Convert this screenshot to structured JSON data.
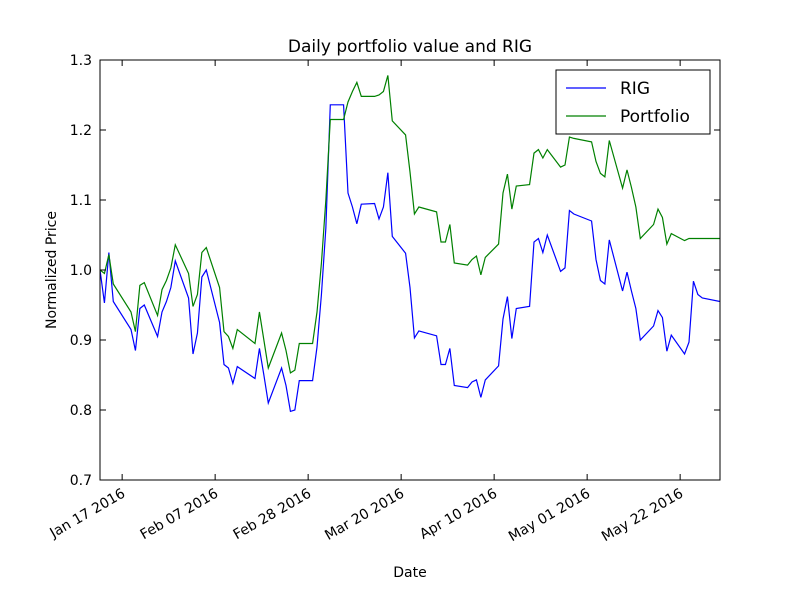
{
  "chart_data": {
    "type": "line",
    "title": "Daily portfolio value and RIG",
    "xlabel": "Date",
    "ylabel": "Normalized Price",
    "xlim": [
      "2016-01-12",
      "2016-05-31"
    ],
    "ylim": [
      0.7,
      1.3
    ],
    "yticks": [
      0.7,
      0.8,
      0.9,
      1.0,
      1.1,
      1.2,
      1.3
    ],
    "ytick_labels": [
      "0.7",
      "0.8",
      "0.9",
      "1.0",
      "1.1",
      "1.2",
      "1.3"
    ],
    "xticks": [
      "2016-01-17",
      "2016-02-07",
      "2016-02-28",
      "2016-03-20",
      "2016-04-10",
      "2016-05-01",
      "2016-05-22"
    ],
    "xtick_labels": [
      "Jan 17 2016",
      "Feb 07 2016",
      "Feb 28 2016",
      "Mar 20 2016",
      "Apr 10 2016",
      "May 01 2016",
      "May 22 2016"
    ],
    "grid": false,
    "legend_position": "top-right",
    "series": [
      {
        "name": "RIG",
        "color": "#0000ff",
        "points": [
          [
            "2016-01-12",
            1.0
          ],
          [
            "2016-01-13",
            0.953
          ],
          [
            "2016-01-14",
            1.025
          ],
          [
            "2016-01-15",
            0.955
          ],
          [
            "2016-01-19",
            0.915
          ],
          [
            "2016-01-20",
            0.885
          ],
          [
            "2016-01-21",
            0.945
          ],
          [
            "2016-01-22",
            0.95
          ],
          [
            "2016-01-25",
            0.905
          ],
          [
            "2016-01-26",
            0.94
          ],
          [
            "2016-01-27",
            0.955
          ],
          [
            "2016-01-28",
            0.975
          ],
          [
            "2016-01-29",
            1.013
          ],
          [
            "2016-02-01",
            0.96
          ],
          [
            "2016-02-02",
            0.88
          ],
          [
            "2016-02-03",
            0.91
          ],
          [
            "2016-02-04",
            0.99
          ],
          [
            "2016-02-05",
            1.0
          ],
          [
            "2016-02-08",
            0.925
          ],
          [
            "2016-02-09",
            0.865
          ],
          [
            "2016-02-10",
            0.86
          ],
          [
            "2016-02-11",
            0.838
          ],
          [
            "2016-02-12",
            0.862
          ],
          [
            "2016-02-16",
            0.845
          ],
          [
            "2016-02-17",
            0.888
          ],
          [
            "2016-02-18",
            0.85
          ],
          [
            "2016-02-19",
            0.81
          ],
          [
            "2016-02-22",
            0.86
          ],
          [
            "2016-02-23",
            0.835
          ],
          [
            "2016-02-24",
            0.798
          ],
          [
            "2016-02-25",
            0.8
          ],
          [
            "2016-02-26",
            0.842
          ],
          [
            "2016-02-29",
            0.842
          ],
          [
            "2016-03-01",
            0.89
          ],
          [
            "2016-03-02",
            0.965
          ],
          [
            "2016-03-03",
            1.06
          ],
          [
            "2016-03-04",
            1.236
          ],
          [
            "2016-03-07",
            1.236
          ],
          [
            "2016-03-08",
            1.11
          ],
          [
            "2016-03-09",
            1.09
          ],
          [
            "2016-03-10",
            1.066
          ],
          [
            "2016-03-11",
            1.094
          ],
          [
            "2016-03-14",
            1.095
          ],
          [
            "2016-03-15",
            1.073
          ],
          [
            "2016-03-16",
            1.09
          ],
          [
            "2016-03-17",
            1.139
          ],
          [
            "2016-03-18",
            1.048
          ],
          [
            "2016-03-21",
            1.024
          ],
          [
            "2016-03-22",
            0.975
          ],
          [
            "2016-03-23",
            0.903
          ],
          [
            "2016-03-24",
            0.913
          ],
          [
            "2016-03-28",
            0.906
          ],
          [
            "2016-03-29",
            0.865
          ],
          [
            "2016-03-30",
            0.865
          ],
          [
            "2016-03-31",
            0.888
          ],
          [
            "2016-04-01",
            0.835
          ],
          [
            "2016-04-04",
            0.832
          ],
          [
            "2016-04-05",
            0.84
          ],
          [
            "2016-04-06",
            0.843
          ],
          [
            "2016-04-07",
            0.818
          ],
          [
            "2016-04-08",
            0.843
          ],
          [
            "2016-04-11",
            0.863
          ],
          [
            "2016-04-12",
            0.93
          ],
          [
            "2016-04-13",
            0.962
          ],
          [
            "2016-04-14",
            0.902
          ],
          [
            "2016-04-15",
            0.945
          ],
          [
            "2016-04-18",
            0.948
          ],
          [
            "2016-04-19",
            1.04
          ],
          [
            "2016-04-20",
            1.045
          ],
          [
            "2016-04-21",
            1.025
          ],
          [
            "2016-04-22",
            1.05
          ],
          [
            "2016-04-25",
            0.998
          ],
          [
            "2016-04-26",
            1.003
          ],
          [
            "2016-04-27",
            1.085
          ],
          [
            "2016-04-28",
            1.08
          ],
          [
            "2016-05-02",
            1.07
          ],
          [
            "2016-05-03",
            1.015
          ],
          [
            "2016-05-04",
            0.985
          ],
          [
            "2016-05-05",
            0.98
          ],
          [
            "2016-05-06",
            1.043
          ],
          [
            "2016-05-09",
            0.97
          ],
          [
            "2016-05-10",
            0.997
          ],
          [
            "2016-05-11",
            0.97
          ],
          [
            "2016-05-12",
            0.945
          ],
          [
            "2016-05-13",
            0.9
          ],
          [
            "2016-05-16",
            0.92
          ],
          [
            "2016-05-17",
            0.942
          ],
          [
            "2016-05-18",
            0.932
          ],
          [
            "2016-05-19",
            0.884
          ],
          [
            "2016-05-20",
            0.907
          ],
          [
            "2016-05-23",
            0.88
          ],
          [
            "2016-05-24",
            0.897
          ],
          [
            "2016-05-25",
            0.984
          ],
          [
            "2016-05-26",
            0.965
          ],
          [
            "2016-05-27",
            0.96
          ],
          [
            "2016-05-31",
            0.955
          ]
        ]
      },
      {
        "name": "Portfolio",
        "color": "#008000",
        "points": [
          [
            "2016-01-12",
            1.0
          ],
          [
            "2016-01-13",
            0.995
          ],
          [
            "2016-01-14",
            1.022
          ],
          [
            "2016-01-15",
            0.98
          ],
          [
            "2016-01-19",
            0.94
          ],
          [
            "2016-01-20",
            0.912
          ],
          [
            "2016-01-21",
            0.978
          ],
          [
            "2016-01-22",
            0.982
          ],
          [
            "2016-01-25",
            0.935
          ],
          [
            "2016-01-26",
            0.972
          ],
          [
            "2016-01-27",
            0.985
          ],
          [
            "2016-01-28",
            1.003
          ],
          [
            "2016-01-29",
            1.036
          ],
          [
            "2016-02-01",
            0.995
          ],
          [
            "2016-02-02",
            0.948
          ],
          [
            "2016-02-03",
            0.965
          ],
          [
            "2016-02-04",
            1.025
          ],
          [
            "2016-02-05",
            1.032
          ],
          [
            "2016-02-08",
            0.975
          ],
          [
            "2016-02-09",
            0.912
          ],
          [
            "2016-02-10",
            0.905
          ],
          [
            "2016-02-11",
            0.888
          ],
          [
            "2016-02-12",
            0.915
          ],
          [
            "2016-02-16",
            0.895
          ],
          [
            "2016-02-17",
            0.94
          ],
          [
            "2016-02-18",
            0.9
          ],
          [
            "2016-02-19",
            0.86
          ],
          [
            "2016-02-22",
            0.91
          ],
          [
            "2016-02-23",
            0.885
          ],
          [
            "2016-02-24",
            0.853
          ],
          [
            "2016-02-25",
            0.857
          ],
          [
            "2016-02-26",
            0.895
          ],
          [
            "2016-02-29",
            0.895
          ],
          [
            "2016-03-01",
            0.94
          ],
          [
            "2016-03-02",
            1.01
          ],
          [
            "2016-03-03",
            1.1
          ],
          [
            "2016-03-04",
            1.215
          ],
          [
            "2016-03-07",
            1.215
          ],
          [
            "2016-03-08",
            1.24
          ],
          [
            "2016-03-09",
            1.255
          ],
          [
            "2016-03-10",
            1.268
          ],
          [
            "2016-03-11",
            1.248
          ],
          [
            "2016-03-14",
            1.248
          ],
          [
            "2016-03-15",
            1.25
          ],
          [
            "2016-03-16",
            1.255
          ],
          [
            "2016-03-17",
            1.278
          ],
          [
            "2016-03-18",
            1.213
          ],
          [
            "2016-03-21",
            1.193
          ],
          [
            "2016-03-22",
            1.14
          ],
          [
            "2016-03-23",
            1.08
          ],
          [
            "2016-03-24",
            1.09
          ],
          [
            "2016-03-28",
            1.083
          ],
          [
            "2016-03-29",
            1.04
          ],
          [
            "2016-03-30",
            1.04
          ],
          [
            "2016-03-31",
            1.065
          ],
          [
            "2016-04-01",
            1.01
          ],
          [
            "2016-04-04",
            1.007
          ],
          [
            "2016-04-05",
            1.015
          ],
          [
            "2016-04-06",
            1.02
          ],
          [
            "2016-04-07",
            0.993
          ],
          [
            "2016-04-08",
            1.018
          ],
          [
            "2016-04-11",
            1.037
          ],
          [
            "2016-04-12",
            1.11
          ],
          [
            "2016-04-13",
            1.137
          ],
          [
            "2016-04-14",
            1.087
          ],
          [
            "2016-04-15",
            1.12
          ],
          [
            "2016-04-18",
            1.122
          ],
          [
            "2016-04-19",
            1.167
          ],
          [
            "2016-04-20",
            1.172
          ],
          [
            "2016-04-21",
            1.16
          ],
          [
            "2016-04-22",
            1.172
          ],
          [
            "2016-04-25",
            1.147
          ],
          [
            "2016-04-26",
            1.15
          ],
          [
            "2016-04-27",
            1.19
          ],
          [
            "2016-04-28",
            1.188
          ],
          [
            "2016-05-02",
            1.183
          ],
          [
            "2016-05-03",
            1.155
          ],
          [
            "2016-05-04",
            1.138
          ],
          [
            "2016-05-05",
            1.133
          ],
          [
            "2016-05-06",
            1.185
          ],
          [
            "2016-05-09",
            1.117
          ],
          [
            "2016-05-10",
            1.143
          ],
          [
            "2016-05-11",
            1.118
          ],
          [
            "2016-05-12",
            1.09
          ],
          [
            "2016-05-13",
            1.045
          ],
          [
            "2016-05-16",
            1.065
          ],
          [
            "2016-05-17",
            1.087
          ],
          [
            "2016-05-18",
            1.075
          ],
          [
            "2016-05-19",
            1.037
          ],
          [
            "2016-05-20",
            1.052
          ],
          [
            "2016-05-23",
            1.042
          ],
          [
            "2016-05-24",
            1.045
          ],
          [
            "2016-05-25",
            1.045
          ],
          [
            "2016-05-26",
            1.045
          ],
          [
            "2016-05-27",
            1.045
          ],
          [
            "2016-05-31",
            1.045
          ]
        ]
      }
    ]
  }
}
